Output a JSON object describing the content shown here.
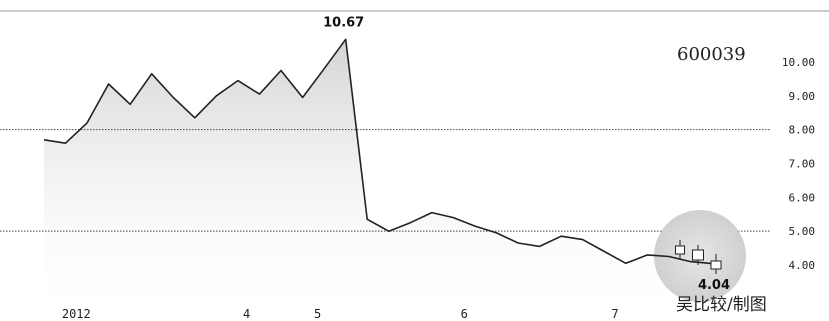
{
  "stock_code": "600039",
  "credit": "吴比较/制图",
  "chart_data": {
    "type": "line",
    "title": "",
    "xlabel": "",
    "ylabel": "",
    "ylim": [
      3.5,
      10.6
    ],
    "yticks": [
      "10.00",
      "9.00",
      "8.00",
      "7.00",
      "6.00",
      "5.00",
      "4.00"
    ],
    "ytick_values": [
      10,
      9,
      8,
      7,
      6,
      5,
      4
    ],
    "xticks": [
      "2012",
      "4",
      "5",
      "6",
      "7"
    ],
    "xtick_positions": [
      1.5,
      9.4,
      12.7,
      19.5,
      26.5
    ],
    "reference_lines": [
      8,
      5
    ],
    "series": [
      {
        "x": [
          0,
          1,
          2,
          3,
          4,
          5,
          6,
          7,
          8,
          9,
          10,
          11,
          12,
          13,
          14,
          15,
          16,
          17,
          18,
          19,
          20,
          21,
          22,
          23,
          24,
          25,
          26,
          27,
          28,
          29,
          30,
          31
        ],
        "values": [
          7.7,
          7.6,
          8.2,
          9.35,
          8.75,
          9.65,
          8.95,
          8.35,
          9.0,
          9.45,
          9.05,
          9.75,
          8.95,
          9.8,
          10.67,
          5.35,
          5.0,
          5.25,
          5.55,
          5.4,
          5.15,
          4.95,
          4.65,
          4.55,
          4.85,
          4.75,
          4.4,
          4.05,
          4.3,
          4.25,
          4.1,
          4.04
        ]
      }
    ],
    "annotations": [
      {
        "text": "10.67",
        "x": 14,
        "y": 10.67
      },
      {
        "text": "4.04",
        "x": 31,
        "y": 4.04
      }
    ],
    "grid": false,
    "legend": "none"
  }
}
